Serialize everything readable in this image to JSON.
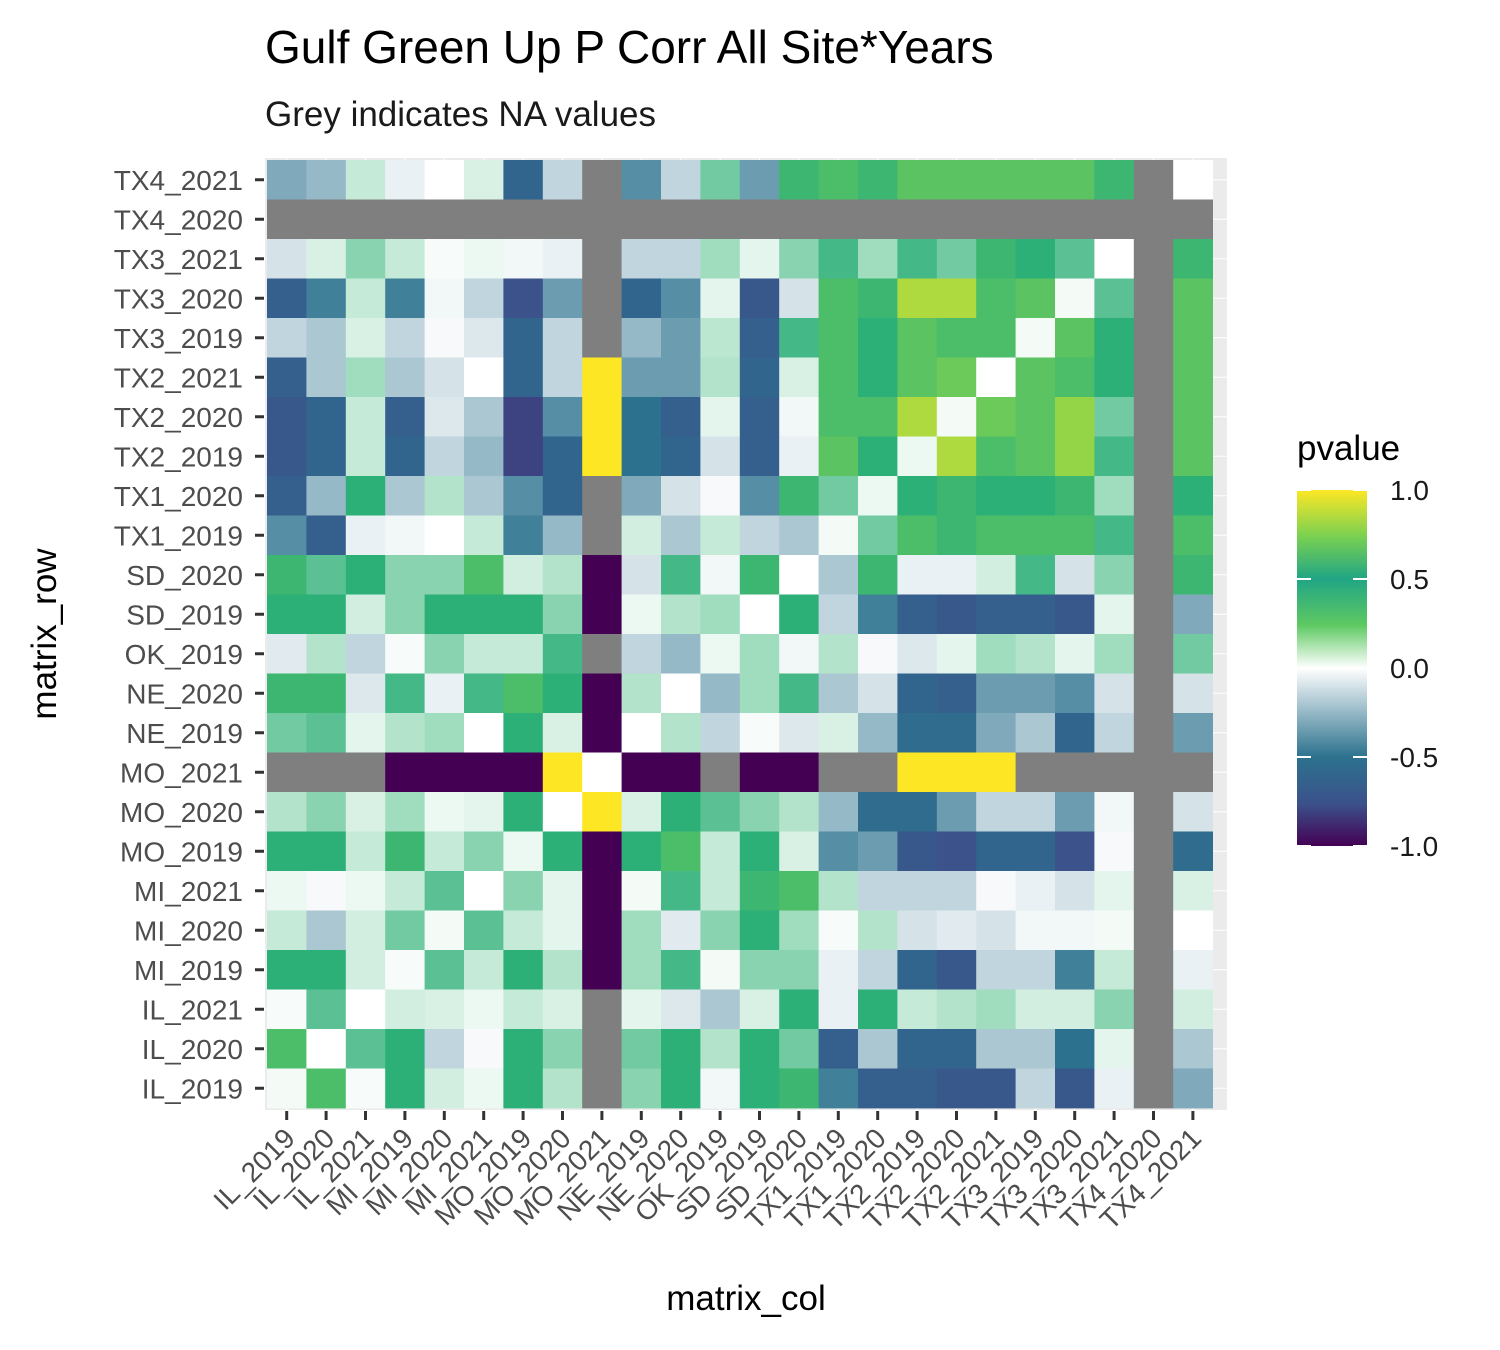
{
  "chart_data": {
    "type": "heatmap",
    "title": "Gulf Green Up P Corr All Site*Years",
    "subtitle": "Grey indicates NA values",
    "xlabel": "matrix_col",
    "ylabel": "matrix_row",
    "legend": {
      "title": "pvalue",
      "ticks": [
        "1.0",
        "0.5",
        "0.0",
        "-0.5",
        "-1.0"
      ],
      "range": [
        -1,
        1
      ],
      "placement": "right"
    },
    "colors": {
      "na": "#7f7f7f",
      "low": "#440154",
      "mid": "#ffffff",
      "high": "#fde725"
    },
    "columns": [
      "IL_2019",
      "IL_2020",
      "IL_2021",
      "MI_2019",
      "MI_2020",
      "MI_2021",
      "MO_2019",
      "MO_2020",
      "MO_2021",
      "NE_2019",
      "NE_2020",
      "OK_2019",
      "SD_2019",
      "SD_2020",
      "TX1_2019",
      "TX1_2020",
      "TX2_2019",
      "TX2_2020",
      "TX2_2021",
      "TX3_2019",
      "TX3_2020",
      "TX3_2021",
      "TX4_2020",
      "TX4_2021"
    ],
    "rows": [
      "TX4_2021",
      "TX4_2020",
      "TX3_2021",
      "TX3_2020",
      "TX3_2019",
      "TX2_2021",
      "TX2_2020",
      "TX2_2019",
      "TX1_2020",
      "TX1_2019",
      "SD_2020",
      "SD_2019",
      "OK_2019",
      "NE_2020",
      "NE_2019",
      "MO_2021",
      "MO_2020",
      "MO_2019",
      "MI_2021",
      "MI_2020",
      "MI_2019",
      "IL_2021",
      "IL_2020",
      "IL_2019"
    ],
    "values": [
      [
        -0.3,
        -0.25,
        0.15,
        -0.05,
        0.0,
        0.1,
        -0.6,
        -0.15,
        null,
        -0.4,
        -0.15,
        0.35,
        -0.35,
        0.55,
        0.6,
        0.55,
        0.65,
        0.65,
        0.65,
        0.65,
        0.65,
        0.55,
        null,
        0.0
      ],
      [
        null,
        null,
        null,
        null,
        null,
        null,
        null,
        null,
        null,
        null,
        null,
        null,
        null,
        null,
        null,
        null,
        null,
        null,
        null,
        null,
        null,
        null,
        null,
        null
      ],
      [
        -0.1,
        0.1,
        0.3,
        0.15,
        0.02,
        0.05,
        -0.03,
        -0.05,
        null,
        -0.15,
        -0.15,
        0.25,
        0.07,
        0.3,
        0.45,
        0.25,
        0.45,
        0.35,
        0.55,
        0.5,
        0.4,
        0.0,
        null,
        0.55
      ],
      [
        -0.65,
        -0.45,
        0.15,
        -0.45,
        -0.03,
        -0.15,
        -0.75,
        -0.35,
        null,
        -0.6,
        -0.4,
        0.07,
        -0.7,
        -0.1,
        0.6,
        0.55,
        0.85,
        0.85,
        0.6,
        0.65,
        0.03,
        0.4,
        null,
        0.65
      ],
      [
        -0.15,
        -0.2,
        0.1,
        -0.15,
        -0.02,
        -0.08,
        -0.6,
        -0.15,
        null,
        -0.25,
        -0.35,
        0.18,
        -0.65,
        0.45,
        0.6,
        0.5,
        0.65,
        0.6,
        0.6,
        0.03,
        0.65,
        0.5,
        null,
        0.65
      ],
      [
        -0.65,
        -0.2,
        0.25,
        -0.2,
        -0.1,
        0.0,
        -0.6,
        -0.15,
        1.0,
        -0.35,
        -0.35,
        0.2,
        -0.6,
        0.1,
        0.6,
        0.5,
        0.65,
        0.7,
        0.0,
        0.65,
        0.6,
        0.5,
        null,
        0.65
      ],
      [
        -0.7,
        -0.6,
        0.15,
        -0.65,
        -0.08,
        -0.2,
        -0.8,
        -0.4,
        1.0,
        -0.5,
        -0.65,
        0.07,
        -0.65,
        -0.03,
        0.6,
        0.6,
        0.85,
        0.03,
        0.7,
        0.65,
        0.8,
        0.35,
        null,
        0.65
      ],
      [
        -0.7,
        -0.6,
        0.15,
        -0.6,
        -0.15,
        -0.25,
        -0.8,
        -0.6,
        1.0,
        -0.5,
        -0.6,
        -0.1,
        -0.65,
        -0.05,
        0.65,
        0.5,
        0.05,
        0.85,
        0.6,
        0.65,
        0.8,
        0.45,
        null,
        0.65
      ],
      [
        -0.65,
        -0.25,
        0.5,
        -0.2,
        0.2,
        -0.2,
        -0.4,
        -0.6,
        null,
        -0.3,
        -0.1,
        -0.02,
        -0.4,
        0.55,
        0.35,
        0.05,
        0.5,
        0.55,
        0.5,
        0.5,
        0.55,
        0.25,
        null,
        0.5
      ],
      [
        -0.4,
        -0.65,
        -0.05,
        -0.03,
        0.0,
        0.15,
        -0.45,
        -0.25,
        null,
        0.12,
        -0.2,
        0.15,
        -0.15,
        -0.2,
        0.03,
        0.35,
        0.6,
        0.55,
        0.6,
        0.6,
        0.6,
        0.45,
        null,
        0.6
      ],
      [
        0.55,
        0.4,
        0.5,
        0.3,
        0.3,
        0.6,
        0.12,
        0.2,
        -1.0,
        -0.1,
        0.45,
        -0.03,
        0.55,
        0.0,
        -0.2,
        0.55,
        -0.05,
        -0.05,
        0.12,
        0.45,
        -0.1,
        0.3,
        null,
        0.55
      ],
      [
        0.5,
        0.5,
        0.12,
        0.3,
        0.5,
        0.5,
        0.5,
        0.3,
        -1.0,
        0.05,
        0.2,
        0.25,
        0.0,
        0.5,
        -0.15,
        -0.45,
        -0.65,
        -0.7,
        -0.65,
        -0.65,
        -0.7,
        0.07,
        null,
        -0.3
      ],
      [
        -0.07,
        0.2,
        -0.15,
        0.02,
        0.3,
        0.15,
        0.15,
        0.45,
        null,
        -0.15,
        -0.25,
        0.05,
        0.25,
        -0.03,
        0.2,
        -0.02,
        -0.08,
        0.07,
        0.25,
        0.2,
        0.07,
        0.25,
        null,
        0.35
      ],
      [
        0.55,
        0.55,
        -0.08,
        0.45,
        -0.05,
        0.45,
        0.6,
        0.5,
        -1.0,
        0.2,
        0.0,
        -0.25,
        0.25,
        0.45,
        -0.2,
        -0.1,
        -0.6,
        -0.65,
        -0.35,
        -0.35,
        -0.4,
        -0.1,
        null,
        -0.1
      ],
      [
        0.35,
        0.4,
        0.07,
        0.2,
        0.25,
        0.0,
        0.5,
        0.1,
        -1.0,
        0.0,
        0.2,
        -0.15,
        0.02,
        -0.08,
        0.1,
        -0.25,
        -0.55,
        -0.55,
        -0.3,
        -0.2,
        -0.6,
        -0.15,
        null,
        -0.35
      ],
      [
        null,
        null,
        null,
        -1.0,
        -1.0,
        -1.0,
        -1.0,
        1.0,
        0.0,
        -1.0,
        -1.0,
        null,
        -1.0,
        -1.0,
        null,
        null,
        1.0,
        1.0,
        1.0,
        null,
        null,
        null,
        null,
        null
      ],
      [
        0.2,
        0.3,
        0.1,
        0.25,
        0.05,
        0.07,
        0.5,
        0.0,
        1.0,
        0.1,
        0.5,
        0.4,
        0.3,
        0.2,
        -0.25,
        -0.55,
        -0.55,
        -0.35,
        -0.15,
        -0.15,
        -0.35,
        -0.03,
        null,
        -0.1
      ],
      [
        0.5,
        0.5,
        0.15,
        0.55,
        0.15,
        0.3,
        0.05,
        0.5,
        -1.0,
        0.5,
        0.6,
        0.15,
        0.5,
        0.1,
        -0.4,
        -0.35,
        -0.7,
        -0.75,
        -0.6,
        -0.6,
        -0.75,
        -0.02,
        null,
        -0.55
      ],
      [
        0.05,
        -0.02,
        0.05,
        0.15,
        0.4,
        0.0,
        0.3,
        0.07,
        -1.0,
        0.03,
        0.45,
        0.15,
        0.55,
        0.6,
        0.2,
        -0.15,
        -0.15,
        -0.15,
        -0.02,
        -0.05,
        -0.1,
        0.07,
        null,
        0.1
      ],
      [
        0.15,
        -0.2,
        0.12,
        0.35,
        0.03,
        0.4,
        0.15,
        0.07,
        -1.0,
        0.25,
        -0.07,
        0.3,
        0.5,
        0.25,
        0.02,
        0.2,
        -0.1,
        -0.07,
        -0.1,
        -0.03,
        -0.03,
        0.03,
        null,
        0.0
      ],
      [
        0.5,
        0.5,
        0.12,
        0.02,
        0.4,
        0.15,
        0.5,
        0.2,
        -1.0,
        0.25,
        0.45,
        0.03,
        0.3,
        0.3,
        -0.05,
        -0.15,
        -0.6,
        -0.7,
        -0.15,
        -0.15,
        -0.45,
        0.15,
        null,
        -0.05
      ],
      [
        0.02,
        0.4,
        0.0,
        0.12,
        0.1,
        0.05,
        0.15,
        0.1,
        null,
        0.07,
        -0.08,
        -0.2,
        0.1,
        0.5,
        -0.05,
        0.5,
        0.15,
        0.2,
        0.25,
        0.12,
        0.12,
        0.3,
        null,
        0.12
      ],
      [
        0.6,
        0.0,
        0.4,
        0.5,
        -0.15,
        -0.02,
        0.5,
        0.3,
        null,
        0.35,
        0.5,
        0.2,
        0.5,
        0.35,
        -0.65,
        -0.2,
        -0.6,
        -0.6,
        -0.2,
        -0.2,
        -0.5,
        0.07,
        null,
        -0.2
      ],
      [
        0.03,
        0.6,
        0.02,
        0.5,
        0.12,
        0.05,
        0.5,
        0.2,
        null,
        0.3,
        0.5,
        -0.03,
        0.5,
        0.55,
        -0.45,
        -0.65,
        -0.65,
        -0.7,
        -0.7,
        -0.15,
        -0.7,
        -0.05,
        null,
        -0.3
      ]
    ]
  }
}
